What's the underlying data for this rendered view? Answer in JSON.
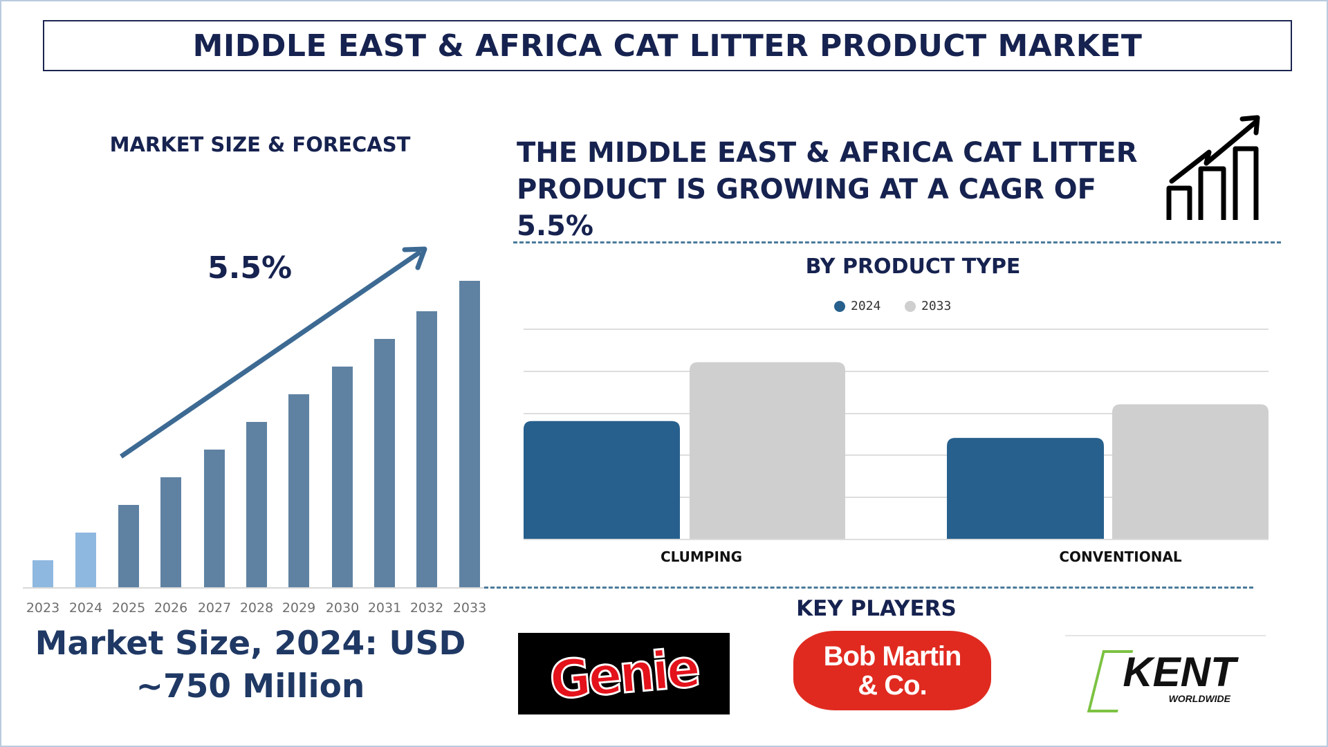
{
  "title": "MIDDLE EAST & AFRICA CAT LITTER PRODUCT MARKET",
  "left_panel": {
    "heading": "MARKET SIZE & FORECAST",
    "cagr_label": "5.5%",
    "market_size_line1": "Market Size, 2024: USD",
    "market_size_line2": "~750 Million"
  },
  "headline": "THE MIDDLE EAST & AFRICA CAT LITTER PRODUCT IS GROWING AT A CAGR OF 5.5%",
  "headline_icon": "growth-chart-icon",
  "product_type": {
    "heading": "BY PRODUCT TYPE"
  },
  "key_players": {
    "heading": "KEY PLAYERS",
    "logos": [
      "Genie",
      "Bob Martin & Co.",
      "KENT WORLDWIDE"
    ]
  },
  "colors": {
    "navy": "#16224f",
    "bar_dark": "#5f82a3",
    "bar_light": "#8fb8e0",
    "series_2024": "#27608d",
    "series_2033": "#cfcfcf",
    "arrow": "#3d6a93"
  },
  "chart_data": [
    {
      "type": "bar",
      "title": "",
      "categories": [
        "2023",
        "2024",
        "2025",
        "2026",
        "2027",
        "2028",
        "2029",
        "2030",
        "2031",
        "2032",
        "2033"
      ],
      "values": [
        1.0,
        2.0,
        3.0,
        4.0,
        5.0,
        6.0,
        7.0,
        8.0,
        9.0,
        10.0,
        11.1
      ],
      "highlighted": [
        "2023",
        "2024"
      ],
      "annotation": "5.5%",
      "ylim": [
        0,
        11.5
      ],
      "grid": false
    },
    {
      "type": "bar",
      "title": "BY PRODUCT TYPE",
      "categories": [
        "CLUMPING",
        "CONVENTIONAL"
      ],
      "series": [
        {
          "name": "2024",
          "values": [
            2.8,
            2.4
          ]
        },
        {
          "name": "2033",
          "values": [
            4.2,
            3.2
          ]
        }
      ],
      "ylim": [
        0,
        5
      ],
      "grid": true,
      "legend": "top"
    }
  ]
}
